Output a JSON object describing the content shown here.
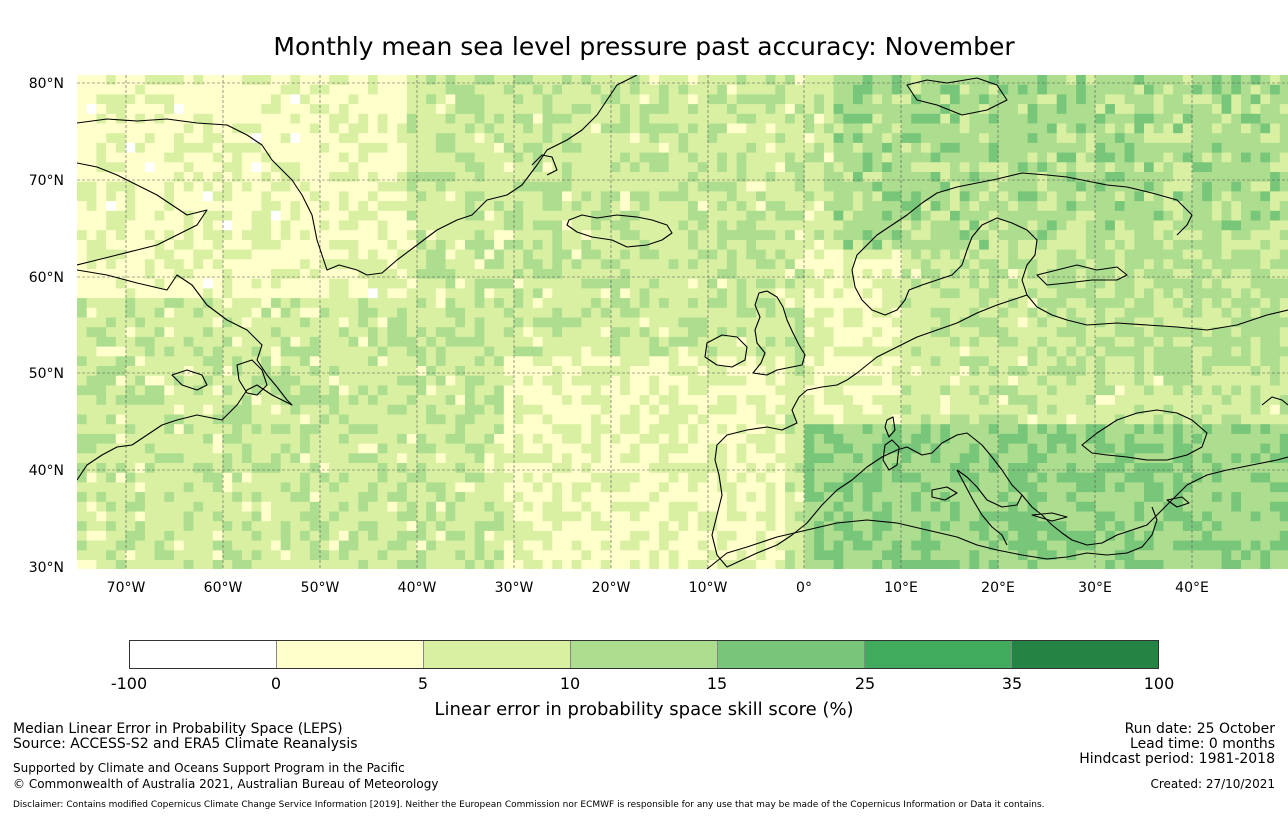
{
  "title": "Monthly mean sea level pressure past accuracy: November",
  "axes": {
    "lat_labels": [
      "80°N",
      "70°N",
      "60°N",
      "50°N",
      "40°N",
      "30°N"
    ],
    "lon_labels": [
      "70°W",
      "60°W",
      "50°W",
      "40°W",
      "30°W",
      "20°W",
      "10°W",
      "0°",
      "10°E",
      "20°E",
      "30°E",
      "40°E"
    ]
  },
  "colorbar": {
    "ticks": [
      "-100",
      "0",
      "5",
      "10",
      "15",
      "25",
      "35",
      "100"
    ],
    "colors": [
      "#ffffff",
      "#ffffcc",
      "#d9f0a3",
      "#addd8e",
      "#78c679",
      "#41ab5d",
      "#238443"
    ],
    "label": "Linear error in probability space skill score (%)"
  },
  "footer": {
    "left": {
      "line1": "Median Linear Error in Probability Space (LEPS)",
      "line2": "Source: ACCESS-S2 and ERA5 Climate Reanalysis",
      "line3": "Supported by Climate and Oceans Support Program in the Pacific",
      "line4": "© Commonwealth of Australia 2021, Australian Bureau of Meteorology"
    },
    "right": {
      "run_date": "Run date: 25 October",
      "lead_time": "Lead time: 0 months",
      "hindcast": "Hindcast period: 1981-2018",
      "created": "Created: 27/10/2021"
    },
    "disclaimer": "Disclaimer: Contains modified Copernicus Climate Change Service Information [2019]. Neither the European Commission nor ECMWF is responsible for any use that may be made of the Copernicus Information or Data it contains."
  }
}
